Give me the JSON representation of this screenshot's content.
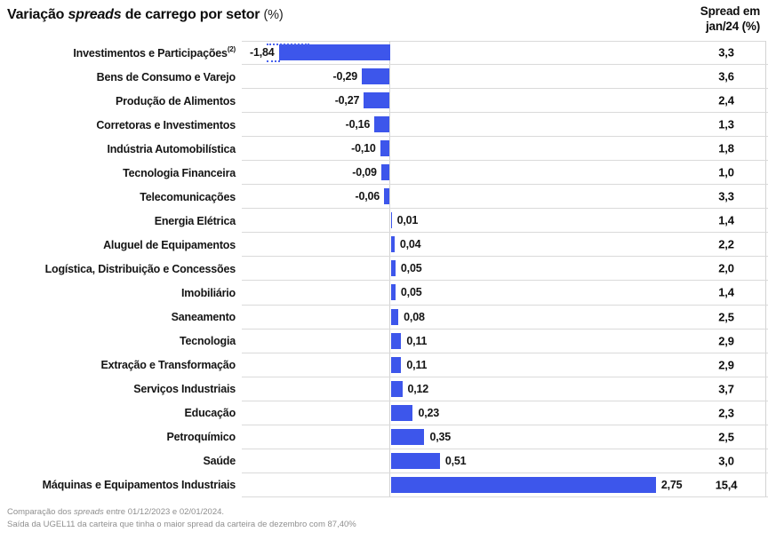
{
  "header": {
    "title_prefix": "Variação ",
    "title_italic": "spreads",
    "title_suffix": " de carrego por setor ",
    "title_unit": "(%)",
    "right_line1": "Spread em",
    "right_line2": "jan/24 (%)"
  },
  "chart_data": {
    "type": "bar",
    "orientation": "horizontal",
    "title": "Variação spreads de carrego por setor (%)",
    "right_column_header": "Spread em jan/24 (%)",
    "bar_color": "#3D56EB",
    "zero_axis": true,
    "xlim_note": "first bar (-1,84) is clipped with dotted truncation marks",
    "rows": [
      {
        "sector": "Investimentos e Participações",
        "footnote": "(2)",
        "variation": -1.84,
        "variation_label": "-1,84",
        "spread_jan24": "3,3",
        "truncated_bar": true
      },
      {
        "sector": "Bens de Consumo e Varejo",
        "variation": -0.29,
        "variation_label": "-0,29",
        "spread_jan24": "3,6"
      },
      {
        "sector": "Produção de Alimentos",
        "variation": -0.27,
        "variation_label": "-0,27",
        "spread_jan24": "2,4"
      },
      {
        "sector": "Corretoras e Investimentos",
        "variation": -0.16,
        "variation_label": "-0,16",
        "spread_jan24": "1,3"
      },
      {
        "sector": "Indústria Automobilística",
        "variation": -0.1,
        "variation_label": "-0,10",
        "spread_jan24": "1,8"
      },
      {
        "sector": "Tecnologia Financeira",
        "variation": -0.09,
        "variation_label": "-0,09",
        "spread_jan24": "1,0"
      },
      {
        "sector": "Telecomunicações",
        "variation": -0.06,
        "variation_label": "-0,06",
        "spread_jan24": "3,3"
      },
      {
        "sector": "Energia Elétrica",
        "variation": 0.01,
        "variation_label": "0,01",
        "spread_jan24": "1,4"
      },
      {
        "sector": "Aluguel de Equipamentos",
        "variation": 0.04,
        "variation_label": "0,04",
        "spread_jan24": "2,2"
      },
      {
        "sector": "Logística, Distribuição e Concessões",
        "variation": 0.05,
        "variation_label": "0,05",
        "spread_jan24": "2,0"
      },
      {
        "sector": "Imobiliário",
        "variation": 0.05,
        "variation_label": "0,05",
        "spread_jan24": "1,4"
      },
      {
        "sector": "Saneamento",
        "variation": 0.08,
        "variation_label": "0,08",
        "spread_jan24": "2,5"
      },
      {
        "sector": "Tecnologia",
        "variation": 0.11,
        "variation_label": "0,11",
        "spread_jan24": "2,9"
      },
      {
        "sector": "Extração e Transformação",
        "variation": 0.11,
        "variation_label": "0,11",
        "spread_jan24": "2,9"
      },
      {
        "sector": "Serviços Industriais",
        "variation": 0.12,
        "variation_label": "0,12",
        "spread_jan24": "3,7"
      },
      {
        "sector": "Educação",
        "variation": 0.23,
        "variation_label": "0,23",
        "spread_jan24": "2,3"
      },
      {
        "sector": "Petroquímico",
        "variation": 0.35,
        "variation_label": "0,35",
        "spread_jan24": "2,5"
      },
      {
        "sector": "Saúde",
        "variation": 0.51,
        "variation_label": "0,51",
        "spread_jan24": "3,0"
      },
      {
        "sector": "Máquinas e Equipamentos Industriais",
        "variation": 2.75,
        "variation_label": "2,75",
        "spread_jan24": "15,4"
      }
    ]
  },
  "footer": {
    "line1_prefix": "Comparação dos ",
    "line1_italic": "spreads",
    "line1_suffix": " entre 01/12/2023 e 02/01/2024.",
    "line2": "Saída da UGEL11 da carteira que tinha o maior spread da carteira de dezembro com 87,40%"
  }
}
